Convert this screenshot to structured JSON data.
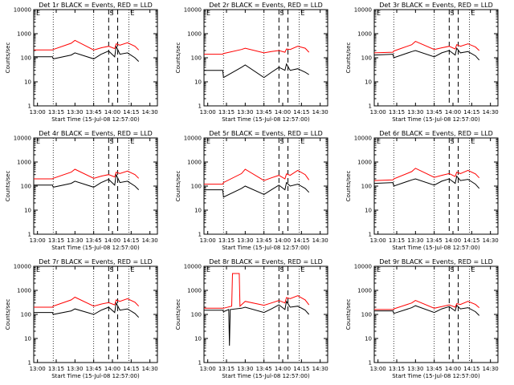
{
  "chart_data": [
    {
      "type": "line",
      "title": "Det 1r BLACK = Events, RED = LLD",
      "xlabel": "Start Time (15-Jul-08 12:57:00)",
      "ylabel": "Counts/sec",
      "marker_left": "E",
      "marker_s": "S",
      "marker_e": "E",
      "series": [
        {
          "color": "#000000",
          "x": [
            12.95,
            13.2,
            13.21,
            13.45,
            13.5,
            13.75,
            13.85,
            13.95,
            14.03,
            14.05,
            14.1,
            14.2,
            14.3,
            14.35
          ],
          "y": [
            110,
            110,
            90,
            130,
            160,
            90,
            140,
            190,
            110,
            300,
            140,
            160,
            100,
            70
          ]
        },
        {
          "color": "#ff0000",
          "x": [
            12.95,
            13.2,
            13.21,
            13.45,
            13.5,
            13.75,
            13.85,
            13.95,
            14.03,
            14.05,
            14.1,
            14.2,
            14.3,
            14.35
          ],
          "y": [
            210,
            210,
            220,
            400,
            530,
            210,
            260,
            300,
            240,
            380,
            330,
            420,
            300,
            210
          ]
        }
      ]
    },
    {
      "type": "line",
      "title": "Det 2r BLACK = Events, RED = LLD",
      "xlabel": "Start Time (15-Jul-08 12:57:00)",
      "ylabel": "Counts/sec",
      "marker_left": "E",
      "marker_s": "S",
      "marker_e": "E",
      "series": [
        {
          "color": "#000000",
          "x": [
            12.95,
            13.2,
            13.21,
            13.45,
            13.5,
            13.75,
            13.85,
            13.95,
            14.03,
            14.05,
            14.1,
            14.2,
            14.3,
            14.35
          ],
          "y": [
            30,
            30,
            15,
            40,
            50,
            15,
            25,
            40,
            30,
            55,
            30,
            35,
            25,
            20
          ]
        },
        {
          "color": "#ff0000",
          "x": [
            12.95,
            13.2,
            13.21,
            13.45,
            13.5,
            13.75,
            13.85,
            13.95,
            14.03,
            14.05,
            14.1,
            14.2,
            14.3,
            14.35
          ],
          "y": [
            140,
            140,
            150,
            220,
            250,
            160,
            180,
            200,
            170,
            230,
            220,
            300,
            250,
            170
          ]
        }
      ]
    },
    {
      "type": "line",
      "title": "Det 3r BLACK = Events, RED = LLD",
      "xlabel": "Start Time (15-Jul-08 12:57:00)",
      "ylabel": "Counts/sec",
      "marker_left": "E",
      "marker_s": "S",
      "marker_e": "E",
      "series": [
        {
          "color": "#000000",
          "x": [
            12.95,
            13.2,
            13.21,
            13.45,
            13.5,
            13.75,
            13.85,
            13.95,
            14.03,
            14.05,
            14.1,
            14.2,
            14.3,
            14.35
          ],
          "y": [
            130,
            140,
            100,
            180,
            200,
            110,
            160,
            200,
            130,
            250,
            160,
            180,
            120,
            80
          ]
        },
        {
          "color": "#ff0000",
          "x": [
            12.95,
            13.2,
            13.21,
            13.45,
            13.5,
            13.75,
            13.85,
            13.95,
            14.03,
            14.05,
            14.1,
            14.2,
            14.3,
            14.35
          ],
          "y": [
            160,
            170,
            190,
            350,
            480,
            220,
            260,
            300,
            230,
            350,
            300,
            380,
            280,
            200
          ]
        }
      ]
    },
    {
      "type": "line",
      "title": "Det 4r BLACK = Events, RED = LLD",
      "xlabel": "Start Time (15-Jul-08 12:57:00)",
      "ylabel": "Counts/sec",
      "marker_left": "E",
      "marker_s": "S",
      "marker_e": "E",
      "series": [
        {
          "color": "#000000",
          "x": [
            12.95,
            13.2,
            13.21,
            13.45,
            13.5,
            13.75,
            13.85,
            13.95,
            14.03,
            14.05,
            14.1,
            14.2,
            14.3,
            14.35
          ],
          "y": [
            110,
            110,
            90,
            130,
            160,
            90,
            140,
            190,
            110,
            300,
            140,
            160,
            100,
            70
          ]
        },
        {
          "color": "#ff0000",
          "x": [
            12.95,
            13.2,
            13.21,
            13.45,
            13.5,
            13.75,
            13.85,
            13.95,
            14.03,
            14.05,
            14.1,
            14.2,
            14.3,
            14.35
          ],
          "y": [
            200,
            200,
            210,
            380,
            500,
            210,
            260,
            300,
            240,
            380,
            330,
            420,
            300,
            210
          ]
        }
      ]
    },
    {
      "type": "line",
      "title": "Det 5r BLACK = Events, RED = LLD",
      "xlabel": "Start Time (15-Jul-08 12:57:00)",
      "ylabel": "Counts/sec",
      "marker_left": "E",
      "marker_s": "S",
      "marker_e": "E",
      "series": [
        {
          "color": "#000000",
          "x": [
            12.95,
            13.2,
            13.21,
            13.45,
            13.5,
            13.75,
            13.85,
            13.95,
            14.03,
            14.05,
            14.1,
            14.2,
            14.3,
            14.35
          ],
          "y": [
            70,
            70,
            35,
            80,
            100,
            45,
            70,
            110,
            70,
            140,
            100,
            120,
            80,
            55
          ]
        },
        {
          "color": "#ff0000",
          "x": [
            12.95,
            13.2,
            13.21,
            13.45,
            13.5,
            13.75,
            13.85,
            13.95,
            14.03,
            14.05,
            14.1,
            14.2,
            14.3,
            14.35
          ],
          "y": [
            120,
            120,
            140,
            330,
            500,
            170,
            220,
            280,
            200,
            320,
            280,
            450,
            300,
            180
          ]
        }
      ]
    },
    {
      "type": "line",
      "title": "Det 6r BLACK = Events, RED = LLD",
      "xlabel": "Start Time (15-Jul-08 12:57:00)",
      "ylabel": "Counts/sec",
      "marker_left": "E",
      "marker_s": "S",
      "marker_e": "E",
      "series": [
        {
          "color": "#000000",
          "x": [
            12.95,
            13.2,
            13.21,
            13.45,
            13.5,
            13.75,
            13.85,
            13.95,
            14.03,
            14.05,
            14.1,
            14.2,
            14.3,
            14.35
          ],
          "y": [
            130,
            140,
            100,
            180,
            200,
            110,
            160,
            200,
            130,
            260,
            170,
            190,
            120,
            80
          ]
        },
        {
          "color": "#ff0000",
          "x": [
            12.95,
            13.2,
            13.21,
            13.45,
            13.5,
            13.75,
            13.85,
            13.95,
            14.03,
            14.05,
            14.1,
            14.2,
            14.3,
            14.35
          ],
          "y": [
            170,
            180,
            200,
            400,
            550,
            230,
            280,
            330,
            250,
            380,
            330,
            450,
            320,
            220
          ]
        }
      ]
    },
    {
      "type": "line",
      "title": "Det 7r BLACK = Events, RED = LLD",
      "xlabel": "Start Time (15-Jul-08 12:57:00)",
      "ylabel": "Counts/sec",
      "marker_left": "E",
      "marker_s": "S",
      "marker_e": "E",
      "series": [
        {
          "color": "#000000",
          "x": [
            12.95,
            13.2,
            13.21,
            13.45,
            13.5,
            13.75,
            13.85,
            13.95,
            14.03,
            14.05,
            14.1,
            14.2,
            14.3,
            14.35
          ],
          "y": [
            120,
            120,
            100,
            140,
            170,
            100,
            150,
            200,
            120,
            300,
            150,
            170,
            110,
            75
          ]
        },
        {
          "color": "#ff0000",
          "x": [
            12.95,
            13.2,
            13.21,
            13.45,
            13.5,
            13.75,
            13.85,
            13.95,
            14.03,
            14.05,
            14.1,
            14.2,
            14.3,
            14.35
          ],
          "y": [
            200,
            200,
            220,
            400,
            520,
            220,
            270,
            310,
            250,
            400,
            350,
            450,
            320,
            220
          ]
        }
      ]
    },
    {
      "type": "line",
      "title": "Det 8r BLACK = Events, RED = LLD",
      "xlabel": "Start Time (15-Jul-08 12:57:00)",
      "ylabel": "Counts/sec",
      "marker_left": "E",
      "marker_s": "S",
      "marker_e": "E",
      "series": [
        {
          "color": "#000000",
          "x": [
            12.95,
            13.2,
            13.21,
            13.28,
            13.29,
            13.3,
            13.45,
            13.5,
            13.75,
            13.85,
            13.95,
            14.03,
            14.05,
            14.1,
            14.2,
            14.3,
            14.35
          ],
          "y": [
            150,
            150,
            130,
            160,
            5,
            160,
            180,
            200,
            120,
            170,
            250,
            160,
            350,
            200,
            220,
            150,
            100
          ]
        },
        {
          "color": "#ff0000",
          "x": [
            12.95,
            13.2,
            13.21,
            13.32,
            13.33,
            13.42,
            13.43,
            13.5,
            13.75,
            13.85,
            13.95,
            14.03,
            14.05,
            14.1,
            14.2,
            14.3,
            14.35
          ],
          "y": [
            180,
            180,
            180,
            220,
            5000,
            5000,
            220,
            350,
            240,
            300,
            380,
            300,
            500,
            450,
            600,
            400,
            250
          ]
        }
      ]
    },
    {
      "type": "line",
      "title": "Det 9r BLACK = Events, RED = LLD",
      "xlabel": "Start Time (15-Jul-08 12:57:00)",
      "ylabel": "Counts/sec",
      "marker_left": "E",
      "marker_s": "S",
      "marker_e": "E",
      "series": [
        {
          "color": "#000000",
          "x": [
            12.95,
            13.2,
            13.21,
            13.45,
            13.5,
            13.75,
            13.85,
            13.95,
            14.03,
            14.05,
            14.1,
            14.2,
            14.3,
            14.35
          ],
          "y": [
            140,
            140,
            110,
            190,
            230,
            120,
            170,
            210,
            140,
            240,
            170,
            190,
            130,
            90
          ]
        },
        {
          "color": "#ff0000",
          "x": [
            12.95,
            13.2,
            13.21,
            13.45,
            13.5,
            13.75,
            13.85,
            13.95,
            14.03,
            14.05,
            14.1,
            14.2,
            14.3,
            14.35
          ],
          "y": [
            160,
            160,
            170,
            300,
            380,
            180,
            210,
            250,
            200,
            280,
            260,
            350,
            260,
            190
          ]
        }
      ]
    }
  ],
  "axes": {
    "x_ticks": [
      13.0,
      13.25,
      13.5,
      13.75,
      14.0,
      14.25,
      14.5
    ],
    "x_tick_labels": [
      "13:00",
      "13:15",
      "13:30",
      "13:45",
      "14:00",
      "14:15",
      "14:30"
    ],
    "x_range": [
      12.95,
      14.6
    ],
    "y_ticks": [
      1,
      10,
      100,
      1000,
      10000
    ],
    "y_tick_labels": [
      "1",
      "10",
      "100",
      "1000",
      "10000"
    ],
    "y_range": [
      1,
      10000
    ],
    "y_scale": "log",
    "dotted_x": [
      13.21,
      13.75,
      14.22
    ],
    "dashed_x": [
      13.95,
      14.07
    ]
  }
}
